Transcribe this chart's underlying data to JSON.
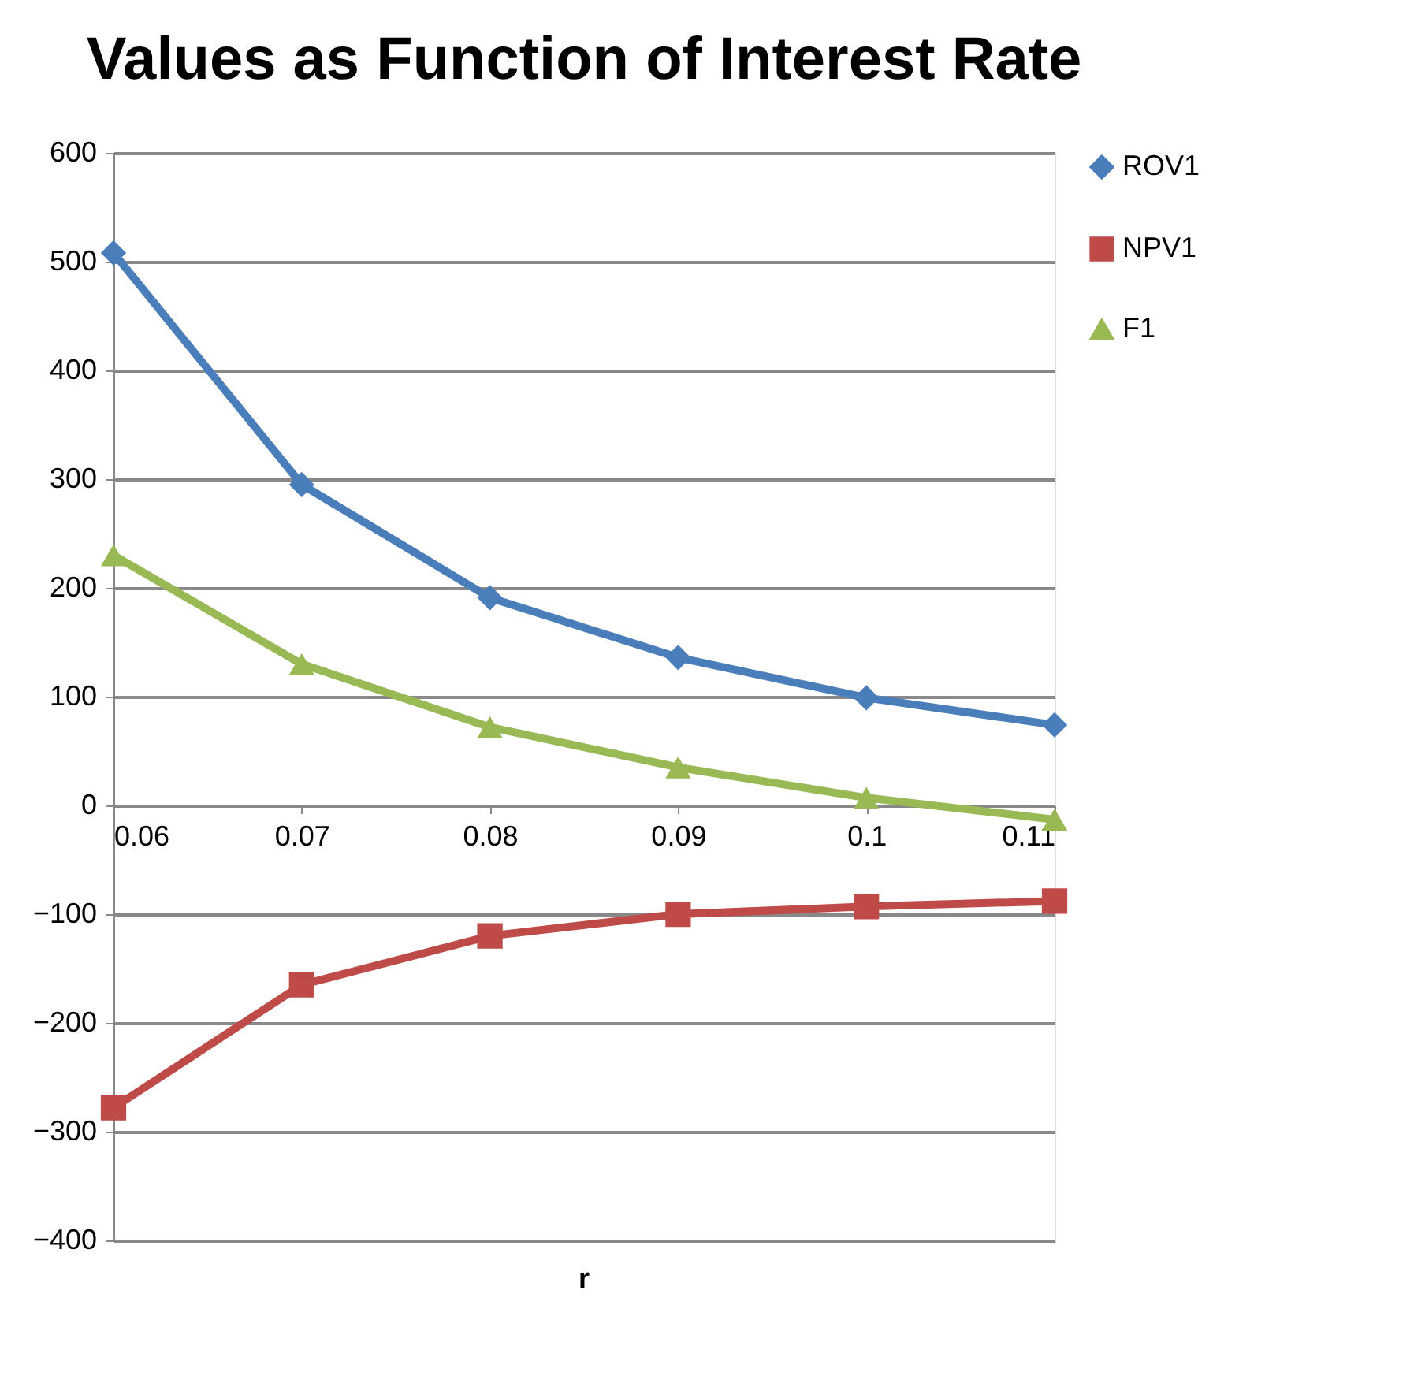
{
  "chart_data": {
    "type": "line",
    "title": "Values as Function of Interest Rate",
    "xlabel": "r",
    "x": [
      0.06,
      0.07,
      0.08,
      0.09,
      0.1,
      0.11
    ],
    "xlim": [
      0.06,
      0.11
    ],
    "xticks": [
      0.06,
      0.07,
      0.08,
      0.09,
      0.1,
      0.11
    ],
    "ylim": [
      -400,
      600
    ],
    "yticks": [
      -400,
      -300,
      -200,
      -100,
      0,
      100,
      200,
      300,
      400,
      500,
      600
    ],
    "grid": "y",
    "legend": "right",
    "line_style": "solid",
    "series": [
      {
        "name": "ROV1",
        "color": "#4a7ebb",
        "marker": "diamond",
        "values": [
          508,
          295,
          191,
          136,
          99,
          74
        ]
      },
      {
        "name": "NPV1",
        "color": "#be4b48",
        "marker": "square",
        "values": [
          -278,
          -165,
          -120,
          -100,
          -93,
          -88
        ]
      },
      {
        "name": "F1",
        "color": "#98b954",
        "marker": "triangle",
        "values": [
          230,
          130,
          72,
          35,
          7,
          -13
        ]
      }
    ]
  }
}
